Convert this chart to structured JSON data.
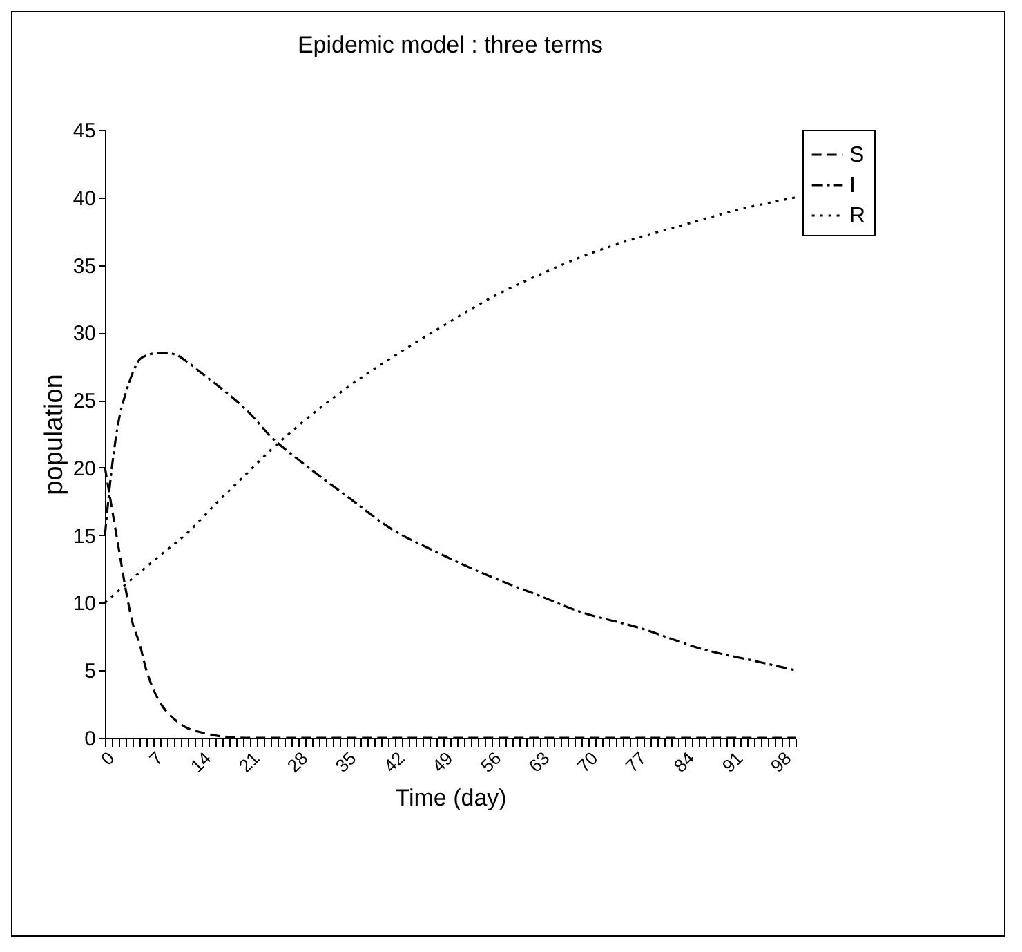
{
  "chart_data": {
    "type": "line",
    "title": "Epidemic model : three terms",
    "xlabel": "Time (day)",
    "ylabel": "population",
    "xlim": [
      0,
      100
    ],
    "ylim": [
      0,
      45
    ],
    "yticks": [
      0,
      5,
      10,
      15,
      20,
      25,
      30,
      35,
      40,
      45
    ],
    "xticks": [
      0,
      {
        "value": 1,
        "label": null
      },
      {
        "value": 2,
        "label": null
      },
      {
        "value": 3,
        "label": null
      },
      {
        "value": 4,
        "label": null
      },
      {
        "value": 5,
        "label": null
      },
      {
        "value": 6,
        "label": null
      },
      7,
      {
        "value": 8,
        "label": null
      },
      {
        "value": 9,
        "label": null
      },
      {
        "value": 10,
        "label": null
      },
      {
        "value": 11,
        "label": null
      },
      {
        "value": 12,
        "label": null
      },
      {
        "value": 13,
        "label": null
      },
      14,
      {
        "value": 15,
        "label": null
      },
      {
        "value": 16,
        "label": null
      },
      {
        "value": 17,
        "label": null
      },
      {
        "value": 18,
        "label": null
      },
      {
        "value": 19,
        "label": null
      },
      {
        "value": 20,
        "label": null
      },
      21,
      {
        "value": 22,
        "label": null
      },
      {
        "value": 23,
        "label": null
      },
      {
        "value": 24,
        "label": null
      },
      {
        "value": 25,
        "label": null
      },
      {
        "value": 26,
        "label": null
      },
      {
        "value": 27,
        "label": null
      },
      28,
      {
        "value": 29,
        "label": null
      },
      {
        "value": 30,
        "label": null
      },
      {
        "value": 31,
        "label": null
      },
      {
        "value": 32,
        "label": null
      },
      {
        "value": 33,
        "label": null
      },
      {
        "value": 34,
        "label": null
      },
      35,
      {
        "value": 36,
        "label": null
      },
      {
        "value": 37,
        "label": null
      },
      {
        "value": 38,
        "label": null
      },
      {
        "value": 39,
        "label": null
      },
      {
        "value": 40,
        "label": null
      },
      {
        "value": 41,
        "label": null
      },
      42,
      {
        "value": 43,
        "label": null
      },
      {
        "value": 44,
        "label": null
      },
      {
        "value": 45,
        "label": null
      },
      {
        "value": 46,
        "label": null
      },
      {
        "value": 47,
        "label": null
      },
      {
        "value": 48,
        "label": null
      },
      49,
      {
        "value": 50,
        "label": null
      },
      {
        "value": 51,
        "label": null
      },
      {
        "value": 52,
        "label": null
      },
      {
        "value": 53,
        "label": null
      },
      {
        "value": 54,
        "label": null
      },
      {
        "value": 55,
        "label": null
      },
      56,
      {
        "value": 57,
        "label": null
      },
      {
        "value": 58,
        "label": null
      },
      {
        "value": 59,
        "label": null
      },
      {
        "value": 60,
        "label": null
      },
      {
        "value": 61,
        "label": null
      },
      {
        "value": 62,
        "label": null
      },
      63,
      {
        "value": 64,
        "label": null
      },
      {
        "value": 65,
        "label": null
      },
      {
        "value": 66,
        "label": null
      },
      {
        "value": 67,
        "label": null
      },
      {
        "value": 68,
        "label": null
      },
      {
        "value": 69,
        "label": null
      },
      70,
      {
        "value": 71,
        "label": null
      },
      {
        "value": 72,
        "label": null
      },
      {
        "value": 73,
        "label": null
      },
      {
        "value": 74,
        "label": null
      },
      {
        "value": 75,
        "label": null
      },
      {
        "value": 76,
        "label": null
      },
      77,
      {
        "value": 78,
        "label": null
      },
      {
        "value": 79,
        "label": null
      },
      {
        "value": 80,
        "label": null
      },
      {
        "value": 81,
        "label": null
      },
      {
        "value": 82,
        "label": null
      },
      {
        "value": 83,
        "label": null
      },
      84,
      {
        "value": 85,
        "label": null
      },
      {
        "value": 86,
        "label": null
      },
      {
        "value": 87,
        "label": null
      },
      {
        "value": 88,
        "label": null
      },
      {
        "value": 89,
        "label": null
      },
      {
        "value": 90,
        "label": null
      },
      91,
      {
        "value": 92,
        "label": null
      },
      {
        "value": 93,
        "label": null
      },
      {
        "value": 94,
        "label": null
      },
      {
        "value": 95,
        "label": null
      },
      {
        "value": 96,
        "label": null
      },
      {
        "value": 97,
        "label": null
      },
      98,
      {
        "value": 99,
        "label": null
      },
      {
        "value": 100,
        "label": null
      }
    ],
    "grid": false,
    "legend": "right",
    "marker": "none",
    "series": [
      {
        "name": "S",
        "color": "#000000",
        "line_style": "dashed",
        "x": [
          0,
          1,
          2,
          3,
          4,
          5,
          6,
          7,
          8,
          9,
          10,
          12,
          14,
          17,
          21,
          28,
          35,
          42,
          49,
          56,
          63,
          70,
          77,
          84,
          91,
          100
        ],
        "values": [
          20,
          17,
          14,
          11,
          8.5,
          7,
          5,
          3.6,
          2.6,
          1.9,
          1.4,
          0.7,
          0.4,
          0.1,
          0,
          0,
          0,
          0,
          0,
          0,
          0,
          0,
          0,
          0,
          0,
          0
        ]
      },
      {
        "name": "I",
        "color": "#000000",
        "line_style": "dashdot",
        "x": [
          0,
          1,
          2,
          3,
          4,
          5,
          6,
          8,
          10,
          12,
          14,
          17,
          21,
          24,
          28,
          35,
          42,
          47,
          56,
          63,
          69,
          77,
          87,
          94,
          100
        ],
        "values": [
          15,
          20,
          23.5,
          25.5,
          27,
          28,
          28.3,
          28.5,
          28.4,
          27.8,
          27,
          25.8,
          24,
          22.3,
          20.6,
          17.9,
          15.3,
          14,
          11.9,
          10.5,
          9.3,
          8.2,
          6.5,
          5.7,
          5
        ]
      },
      {
        "name": "R",
        "color": "#000000",
        "line_style": "dotted",
        "x": [
          0,
          4,
          8,
          12,
          16,
          20,
          24,
          28,
          35,
          42,
          49,
          56,
          63,
          70,
          77,
          84,
          91,
          100
        ],
        "values": [
          10,
          11.8,
          13.5,
          15.2,
          17.3,
          19.3,
          21.3,
          23.1,
          25.9,
          28.3,
          30.5,
          32.6,
          34.3,
          35.8,
          37,
          38,
          39,
          40
        ]
      }
    ]
  }
}
